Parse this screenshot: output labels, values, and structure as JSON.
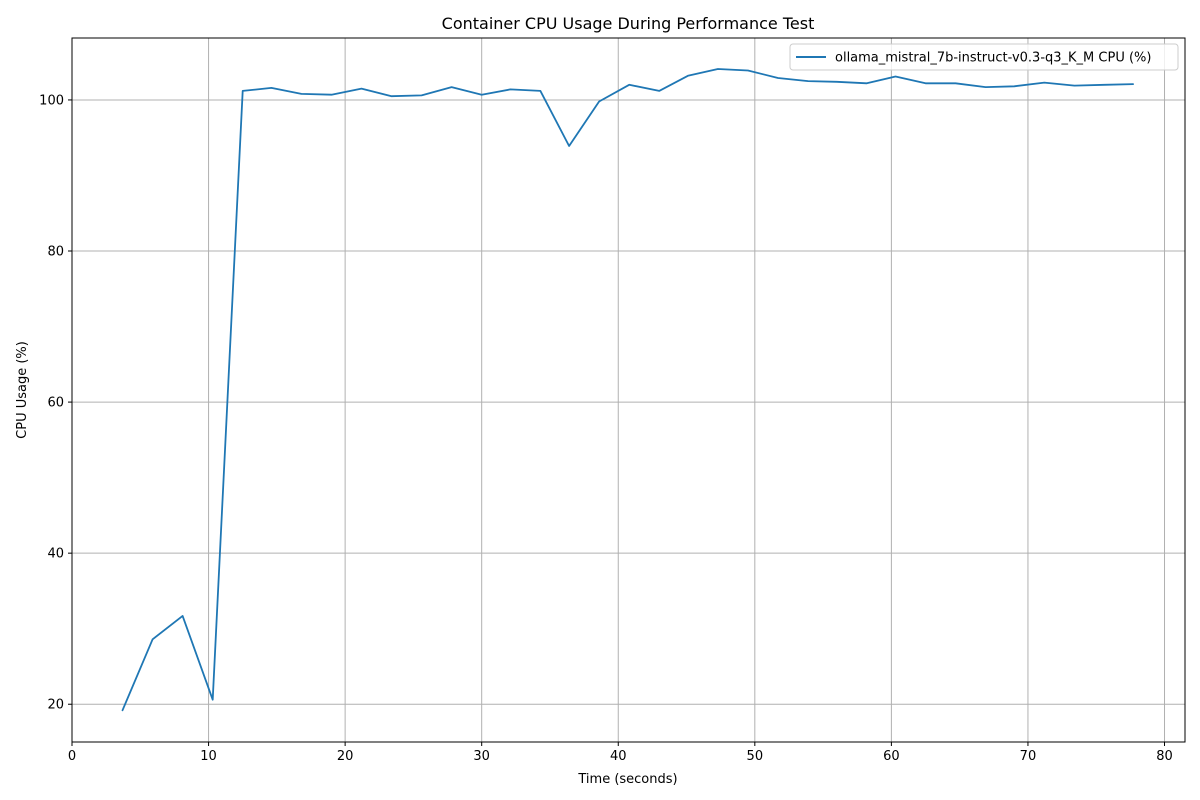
{
  "chart_data": {
    "type": "line",
    "title": "Container CPU Usage During Performance Test",
    "xlabel": "Time (seconds)",
    "ylabel": "CPU Usage (%)",
    "xlim": [
      0,
      81.5
    ],
    "ylim": [
      15,
      108.2
    ],
    "xticks": [
      0,
      10,
      20,
      30,
      40,
      50,
      60,
      70,
      80
    ],
    "yticks": [
      20,
      40,
      60,
      80,
      100
    ],
    "grid": true,
    "legend_position": "top-right",
    "series": [
      {
        "name": "ollama_mistral_7b-instruct-v0.3-q3_K_M CPU (%)",
        "color": "#1f77b4",
        "x": [
          3.7,
          5.9,
          8.1,
          10.3,
          12.5,
          14.6,
          16.8,
          19.0,
          21.2,
          23.4,
          25.6,
          27.8,
          30.0,
          32.1,
          34.3,
          36.4,
          38.6,
          40.8,
          43.0,
          45.1,
          47.3,
          49.5,
          51.7,
          53.9,
          56.0,
          58.2,
          60.3,
          62.5,
          64.7,
          66.9,
          69.0,
          71.2,
          73.4,
          75.6,
          77.7
        ],
        "y": [
          19.2,
          28.6,
          31.7,
          20.6,
          101.2,
          101.6,
          100.8,
          100.7,
          101.5,
          100.5,
          100.6,
          101.7,
          100.7,
          101.4,
          101.2,
          93.9,
          99.8,
          102.0,
          101.2,
          103.2,
          104.1,
          103.9,
          102.9,
          102.5,
          102.4,
          102.2,
          103.1,
          102.2,
          102.2,
          101.7,
          101.8,
          102.3,
          101.9,
          102.0,
          102.1
        ]
      }
    ]
  }
}
